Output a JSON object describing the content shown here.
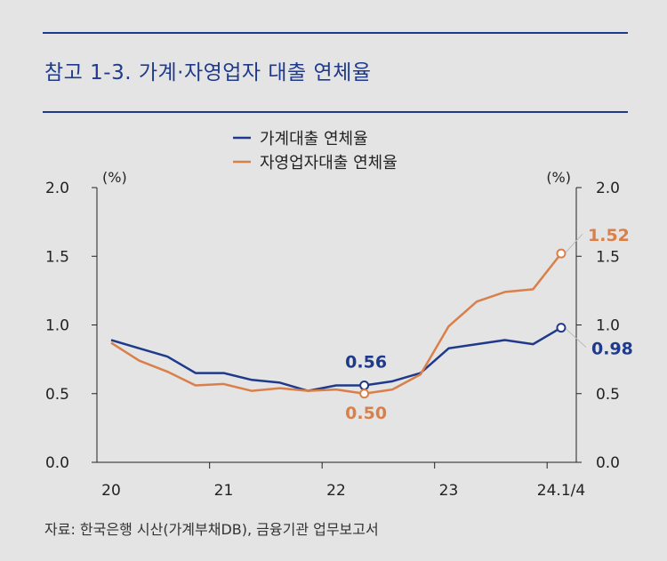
{
  "header": {
    "title": "참고 1-3. 가계·자영업자 대출 연체율"
  },
  "footer": {
    "source": "자료: 한국은행 시산(가계부채DB), 금융기관 업무보고서"
  },
  "colors": {
    "household": "#1f3a8a",
    "selfemployed": "#d9804a",
    "axis": "#222222",
    "background": "#e4e4e4"
  },
  "chart_data": {
    "type": "line",
    "x_tick_labels": [
      "20",
      "21",
      "22",
      "23",
      "24.1/4"
    ],
    "y_left_unit": "(%)",
    "y_right_unit": "(%)",
    "y_ticks": [
      "0.0",
      "0.5",
      "1.0",
      "1.5",
      "2.0"
    ],
    "ylim": [
      0,
      2.0
    ],
    "x": [
      "20.1/4",
      "20.2/4",
      "20.3/4",
      "20.4/4",
      "21.1/4",
      "21.2/4",
      "21.3/4",
      "21.4/4",
      "22.1/4",
      "22.2/4",
      "22.3/4",
      "22.4/4",
      "23.1/4",
      "23.2/4",
      "23.3/4",
      "23.4/4",
      "24.1/4"
    ],
    "series": [
      {
        "name": "가계대출 연체율",
        "color": "#1f3a8a",
        "values": [
          0.89,
          0.83,
          0.77,
          0.65,
          0.65,
          0.6,
          0.58,
          0.52,
          0.56,
          0.56,
          0.59,
          0.65,
          0.83,
          0.86,
          0.89,
          0.86,
          0.98
        ]
      },
      {
        "name": "자영업자대출 연체율",
        "color": "#d9804a",
        "values": [
          0.87,
          0.74,
          0.66,
          0.56,
          0.57,
          0.52,
          0.54,
          0.52,
          0.53,
          0.5,
          0.53,
          0.64,
          0.99,
          1.17,
          1.24,
          1.26,
          1.52
        ]
      }
    ],
    "annotations": [
      {
        "series": 0,
        "index": 9,
        "label": "0.56"
      },
      {
        "series": 1,
        "index": 9,
        "label": "0.50"
      },
      {
        "series": 1,
        "index": 16,
        "label": "1.52"
      },
      {
        "series": 0,
        "index": 16,
        "label": "0.98"
      }
    ],
    "legend_position": "top-center",
    "grid": false
  }
}
